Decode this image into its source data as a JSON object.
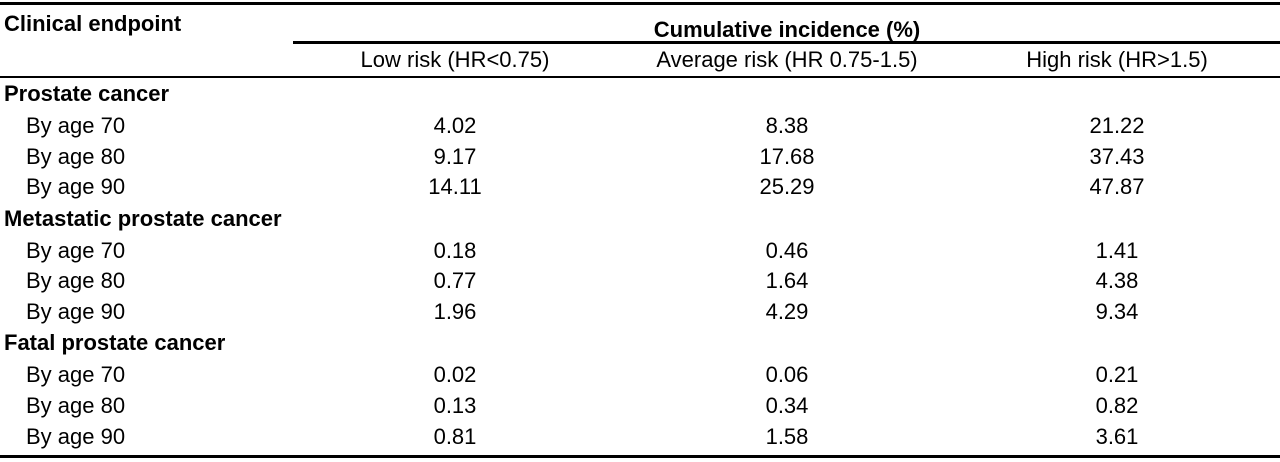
{
  "table": {
    "header": {
      "endpoint_label": "Clinical endpoint",
      "group_label": "Cumulative incidence (%)",
      "columns": [
        "Low risk (HR<0.75)",
        "Average risk (HR 0.75-1.5)",
        "High risk (HR>1.5)"
      ]
    },
    "sections": [
      {
        "title": "Prostate cancer",
        "rows": [
          {
            "label": "By age 70",
            "values": [
              "4.02",
              "8.38",
              "21.22"
            ]
          },
          {
            "label": "By age 80",
            "values": [
              "9.17",
              "17.68",
              "37.43"
            ]
          },
          {
            "label": "By age 90",
            "values": [
              "14.11",
              "25.29",
              "47.87"
            ]
          }
        ]
      },
      {
        "title": "Metastatic prostate cancer",
        "rows": [
          {
            "label": "By age 70",
            "values": [
              "0.18",
              "0.46",
              "1.41"
            ]
          },
          {
            "label": "By age 80",
            "values": [
              "0.77",
              "1.64",
              "4.38"
            ]
          },
          {
            "label": "By age 90",
            "values": [
              "1.96",
              "4.29",
              "9.34"
            ]
          }
        ]
      },
      {
        "title": "Fatal prostate cancer",
        "rows": [
          {
            "label": "By age 70",
            "values": [
              "0.02",
              "0.06",
              "0.21"
            ]
          },
          {
            "label": "By age 80",
            "values": [
              "0.13",
              "0.34",
              "0.82"
            ]
          },
          {
            "label": "By age 90",
            "values": [
              "0.81",
              "1.58",
              "3.61"
            ]
          }
        ]
      }
    ]
  }
}
